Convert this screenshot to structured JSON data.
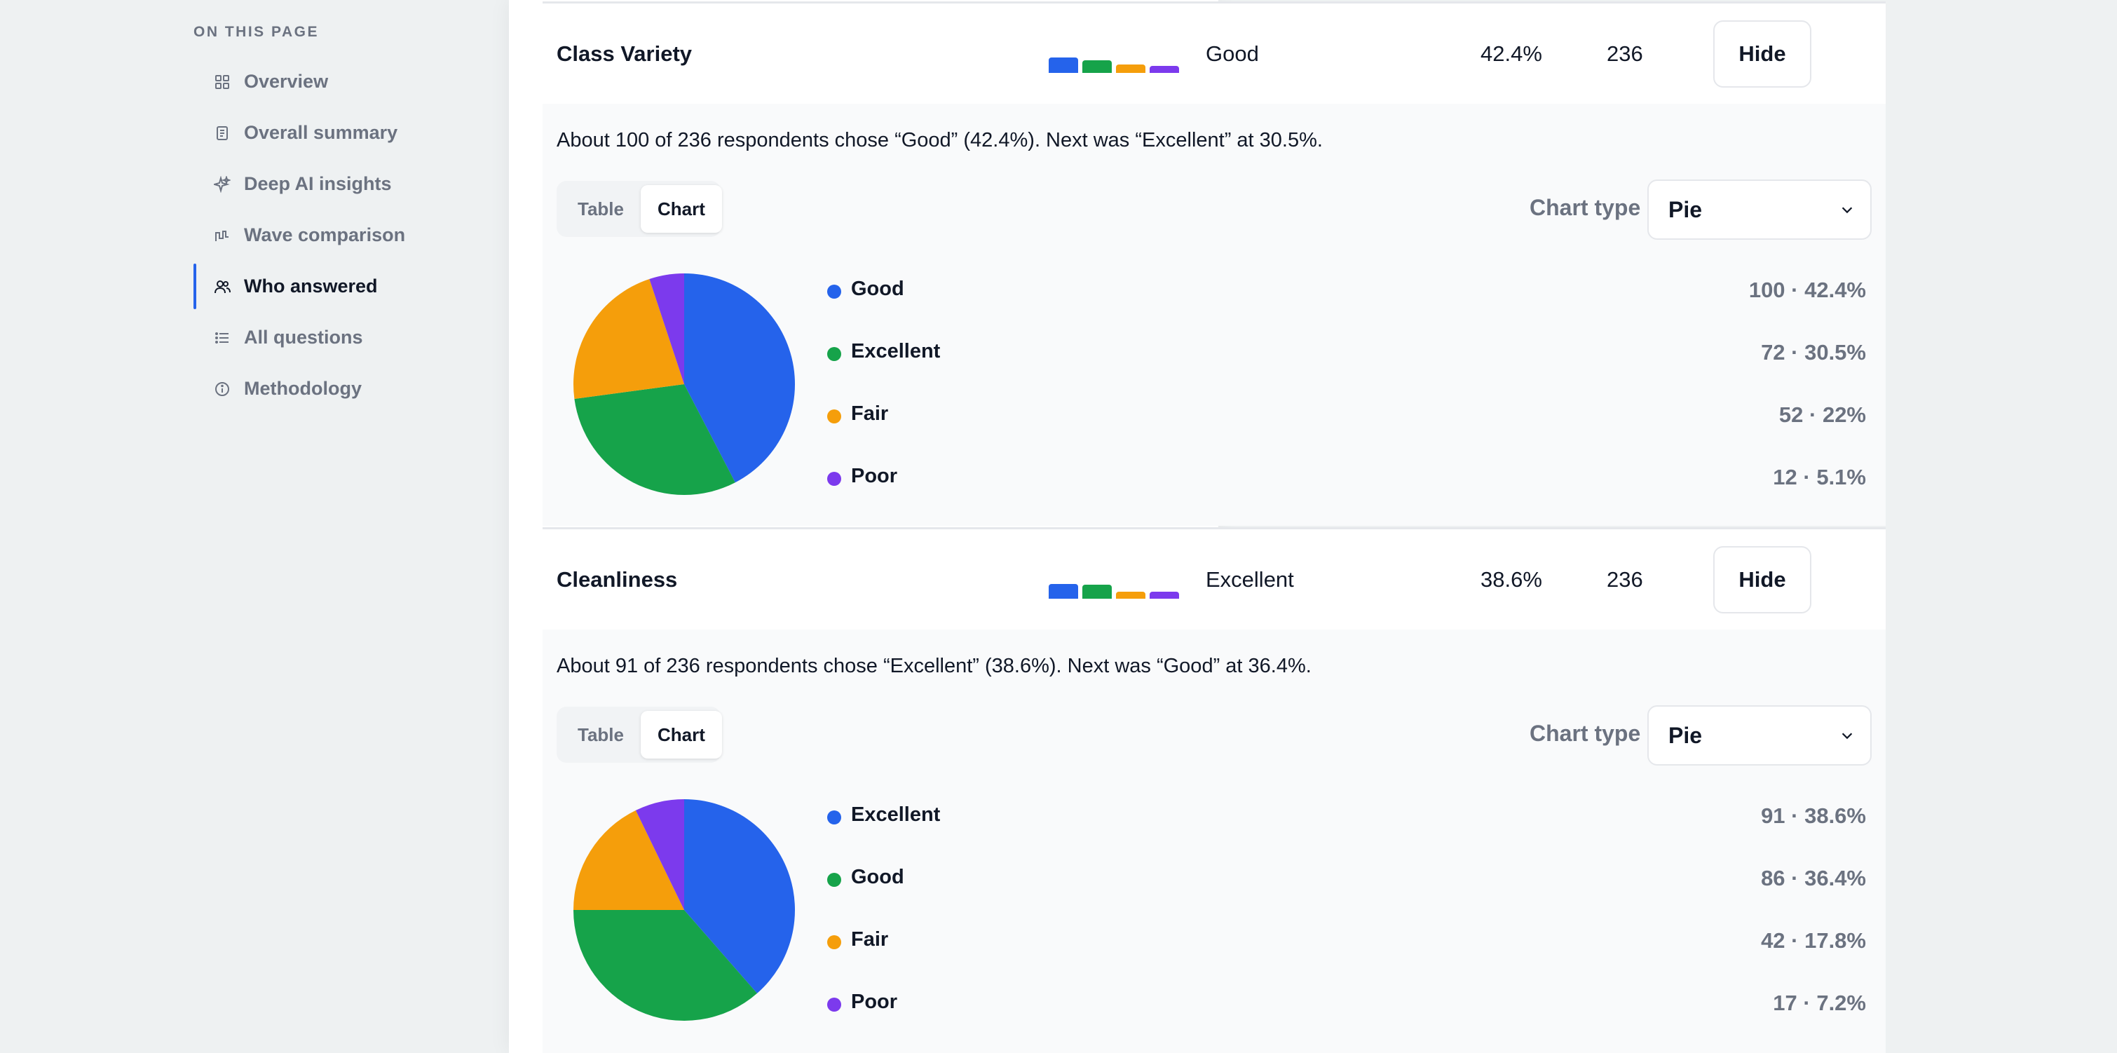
{
  "toc": {
    "heading": "ON THIS PAGE",
    "items": [
      {
        "label": "Overview",
        "icon": "grid-icon",
        "active": false
      },
      {
        "label": "Overall summary",
        "icon": "document-icon",
        "active": false
      },
      {
        "label": "Deep AI insights",
        "icon": "sparkle-icon",
        "active": false
      },
      {
        "label": "Wave comparison",
        "icon": "wave-chart-icon",
        "active": false
      },
      {
        "label": "Who answered",
        "icon": "users-icon",
        "active": true
      },
      {
        "label": "All questions",
        "icon": "list-icon",
        "active": false
      },
      {
        "label": "Methodology",
        "icon": "info-icon",
        "active": false
      }
    ]
  },
  "questions": [
    {
      "title": "Class Variety",
      "top_answer": "Good",
      "top_pct": "42.4%",
      "n": "236",
      "hide_label": "Hide",
      "summary": "About 100 of 236 respondents chose “Good” (42.4%). Next was “Excellent” at 30.5%.",
      "tabs": {
        "table": "Table",
        "chart": "Chart"
      },
      "chart_type_label": "Chart type",
      "chart_type_value": "Pie",
      "legend": [
        {
          "name": "Good",
          "value": "100 · 42.4%",
          "color": "#2563eb"
        },
        {
          "name": "Excellent",
          "value": "72 · 30.5%",
          "color": "#16a34a"
        },
        {
          "name": "Fair",
          "value": "52 · 22%",
          "color": "#f59e0b"
        },
        {
          "name": "Poor",
          "value": "12 · 5.1%",
          "color": "#7c3aed"
        }
      ]
    },
    {
      "title": "Cleanliness",
      "top_answer": "Excellent",
      "top_pct": "38.6%",
      "n": "236",
      "hide_label": "Hide",
      "summary": "About 91 of 236 respondents chose “Excellent” (38.6%). Next was “Good” at 36.4%.",
      "tabs": {
        "table": "Table",
        "chart": "Chart"
      },
      "chart_type_label": "Chart type",
      "chart_type_value": "Pie",
      "legend": [
        {
          "name": "Excellent",
          "value": "91 · 38.6%",
          "color": "#2563eb"
        },
        {
          "name": "Good",
          "value": "86 · 36.4%",
          "color": "#16a34a"
        },
        {
          "name": "Fair",
          "value": "42 · 17.8%",
          "color": "#f59e0b"
        },
        {
          "name": "Poor",
          "value": "17 · 7.2%",
          "color": "#7c3aed"
        }
      ]
    }
  ],
  "chart_data": [
    {
      "type": "pie",
      "title": "",
      "categories": [
        "Good",
        "Excellent",
        "Fair",
        "Poor"
      ],
      "values": [
        100,
        72,
        52,
        12
      ],
      "colors": [
        "#2563eb",
        "#16a34a",
        "#f59e0b",
        "#7c3aed"
      ]
    },
    {
      "type": "pie",
      "title": "",
      "categories": [
        "Excellent",
        "Good",
        "Fair",
        "Poor"
      ],
      "values": [
        91,
        86,
        42,
        17
      ],
      "colors": [
        "#2563eb",
        "#16a34a",
        "#f59e0b",
        "#7c3aed"
      ]
    }
  ]
}
